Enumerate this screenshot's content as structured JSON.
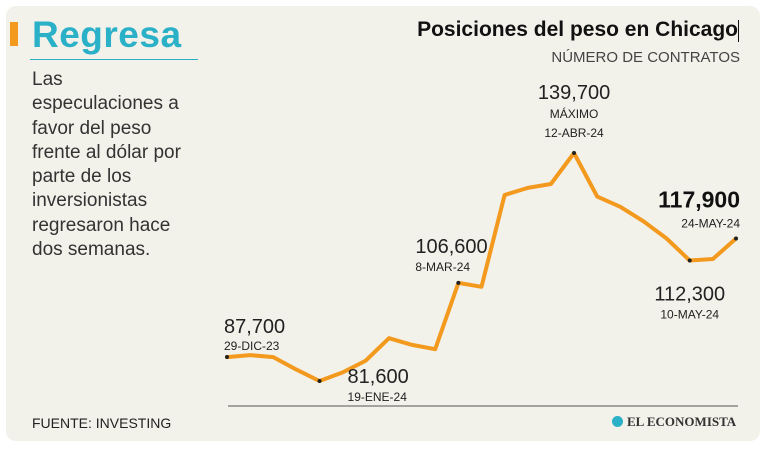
{
  "kicker": "Regresa",
  "body": "Las especulaciones a favor del peso frente al dólar por parte de los inversionistas regresaron hace dos semanas.",
  "source": "FUENTE: INVESTING",
  "brand": "EL ECONOMISTA",
  "colors": {
    "line": "#f39a1e",
    "accent": "#2ab0c7",
    "background": "#f2f1ea"
  },
  "chart_data": {
    "type": "line",
    "title": "Posiciones del peso en Chicago",
    "subtitle": "NÚMERO DE CONTRATOS",
    "xlabel": "",
    "ylabel": "",
    "ylim": [
      78000,
      142000
    ],
    "grid": false,
    "values": [
      87700,
      88200,
      87700,
      84500,
      81600,
      83800,
      86800,
      92500,
      90800,
      89700,
      106600,
      105600,
      129000,
      130800,
      131800,
      139700,
      128600,
      126000,
      122300,
      117900,
      112300,
      112700,
      117900
    ],
    "annotations": [
      {
        "index": 0,
        "value": "87,700",
        "label": "29-DIC-23",
        "extra": "",
        "emphasis": false
      },
      {
        "index": 4,
        "value": "81,600",
        "label": "19-ENE-24",
        "extra": "",
        "emphasis": false
      },
      {
        "index": 10,
        "value": "106,600",
        "label": "8-MAR-24",
        "extra": "",
        "emphasis": false
      },
      {
        "index": 15,
        "value": "139,700",
        "label": "12-ABR-24",
        "extra": "MÁXIMO",
        "emphasis": false
      },
      {
        "index": 20,
        "value": "112,300",
        "label": "10-MAY-24",
        "extra": "",
        "emphasis": false
      },
      {
        "index": 22,
        "value": "117,900",
        "label": "24-MAY-24",
        "extra": "",
        "emphasis": true
      }
    ]
  }
}
